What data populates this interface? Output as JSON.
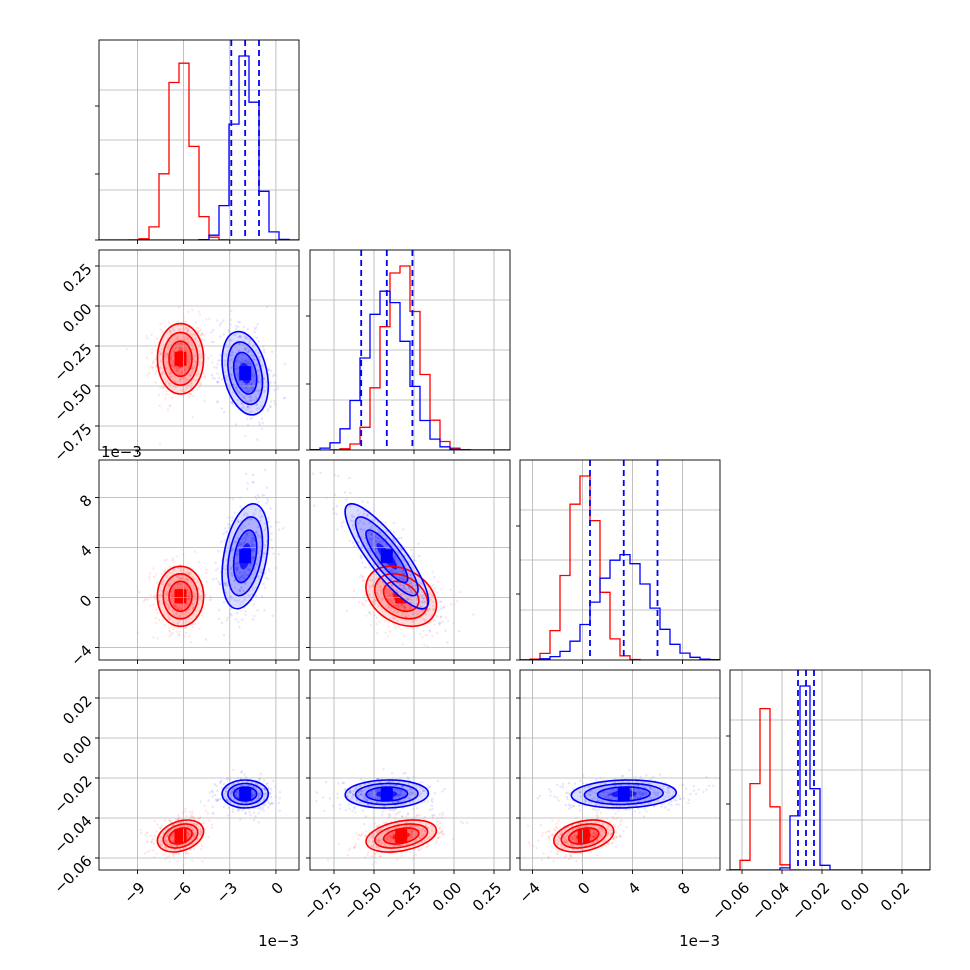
{
  "chart_data": {
    "type": "corner",
    "parameters": [
      {
        "ticks": [
          -9,
          -6,
          -3,
          0
        ],
        "tick_labels": [
          "−9",
          "−6",
          "−3",
          "0"
        ],
        "range": [
          -11.5,
          1.5
        ],
        "offset_text": "1e−3"
      },
      {
        "ticks": [
          -0.75,
          -0.5,
          -0.25,
          0.0,
          0.25
        ],
        "tick_labels": [
          "−0.75",
          "−0.50",
          "−0.25",
          "0.00",
          "0.25"
        ],
        "range": [
          -0.9,
          0.35
        ],
        "offset_text": ""
      },
      {
        "ticks": [
          -4,
          0,
          4,
          8
        ],
        "tick_labels": [
          "−4",
          "0",
          "4",
          "8"
        ],
        "range": [
          -5,
          11
        ],
        "offset_text": "1e−3"
      },
      {
        "ticks": [
          -0.06,
          -0.04,
          -0.02,
          0.0,
          0.02
        ],
        "tick_labels": [
          "−0.06",
          "−0.04",
          "−0.02",
          "0.00",
          "0.02"
        ],
        "range": [
          -0.066,
          0.034
        ],
        "offset_text": ""
      }
    ],
    "series": [
      {
        "color": "#ff0000",
        "mean": [
          -6.2,
          -0.33,
          0.1,
          -0.049
        ],
        "std": [
          0.75,
          0.11,
          1.2,
          0.004
        ],
        "corr": [
          [
            1,
            0.0,
            0.0,
            0.3
          ],
          [
            0.0,
            1,
            -0.3,
            0.35
          ],
          [
            0.0,
            -0.3,
            1,
            0.3
          ],
          [
            0.3,
            0.35,
            0.3,
            1
          ]
        ],
        "show_quantiles": false
      },
      {
        "color": "#0000ff",
        "mean": [
          -2.0,
          -0.42,
          3.3,
          -0.028
        ],
        "std": [
          0.75,
          0.13,
          2.1,
          0.0035
        ],
        "corr": [
          [
            1,
            -0.3,
            0.35,
            0.0
          ],
          [
            -0.3,
            1,
            -0.85,
            0.05
          ],
          [
            0.35,
            -0.85,
            1,
            0.1
          ],
          [
            0.0,
            0.05,
            0.1,
            1
          ]
        ],
        "show_quantiles": true,
        "quantiles": [
          [
            -2.9,
            -2.0,
            -1.1
          ],
          [
            -0.58,
            -0.42,
            -0.26
          ],
          [
            0.6,
            3.3,
            6.0
          ],
          [
            -0.032,
            -0.028,
            -0.024
          ]
        ]
      }
    ],
    "grid": true
  }
}
